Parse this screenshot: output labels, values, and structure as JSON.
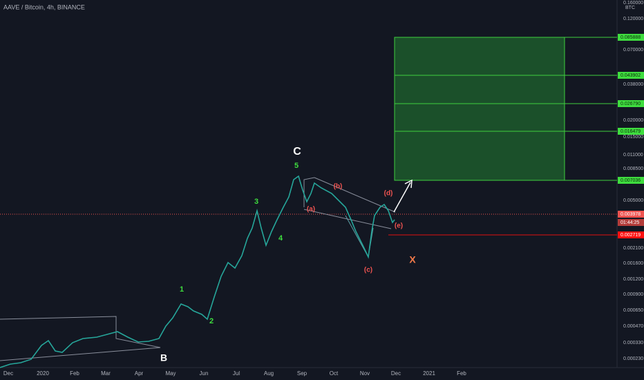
{
  "header": {
    "title": "AAVE / Bitcoin, 4h, BINANCE"
  },
  "price_axis": {
    "unit": "BTC",
    "labels": [
      "0.160000",
      "0.120000",
      "0.070000",
      "0.038000",
      "0.020000",
      "0.015000",
      "0.011000",
      "0.008500",
      "0.005000",
      "0.002100",
      "0.001600",
      "0.001200",
      "0.000900",
      "0.000650",
      "0.000470",
      "0.000330",
      "0.000230"
    ]
  },
  "target_tags": [
    "0.085888",
    "0.043902",
    "0.026790",
    "0.016479",
    "0.007036"
  ],
  "last_price": "0.003978",
  "countdown": "01:44:25",
  "stop_tag": "0.002719",
  "time_axis": [
    "Dec",
    "2020",
    "Feb",
    "Mar",
    "Apr",
    "May",
    "Jun",
    "Jul",
    "Aug",
    "Sep",
    "Oct",
    "Nov",
    "Dec",
    "2021",
    "Feb"
  ],
  "wave_labels": [
    "C",
    "5",
    "3",
    "4",
    "1",
    "2",
    "B",
    "(a)",
    "(b)",
    "(c)",
    "(d)",
    "(e)",
    "X"
  ]
}
